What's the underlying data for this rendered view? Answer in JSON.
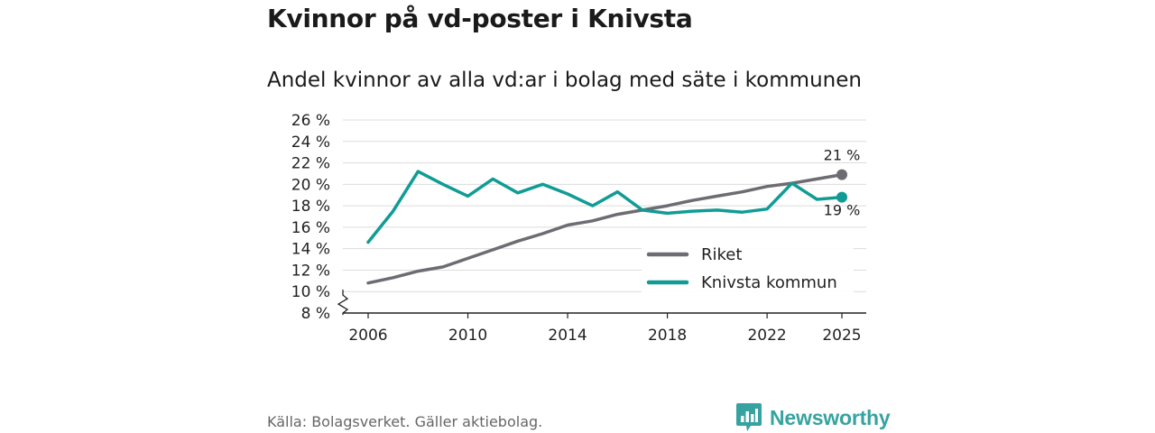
{
  "header": {
    "title": "Kvinnor på vd-poster i Knivsta",
    "subtitle": "Andel kvinnor av alla vd:ar i bolag med säte i kommunen"
  },
  "footer": {
    "source": "Källa: Bolagsverket. Gäller aktiebolag.",
    "brand": "Newsworthy",
    "brand_color": "#36a3a0",
    "brand_icon": "bar-chart-icon"
  },
  "chart_data": {
    "type": "line",
    "title": "Kvinnor på vd-poster i Knivsta",
    "subtitle": "Andel kvinnor av alla vd:ar i bolag med säte i kommunen",
    "xlabel": "",
    "ylabel": "",
    "x": [
      2006,
      2007,
      2008,
      2009,
      2010,
      2011,
      2012,
      2013,
      2014,
      2015,
      2016,
      2017,
      2018,
      2019,
      2020,
      2021,
      2022,
      2023,
      2024,
      2025
    ],
    "xticks": [
      2006,
      2010,
      2014,
      2018,
      2022,
      2025
    ],
    "xlim": [
      2006,
      2025
    ],
    "ylim": [
      8,
      26
    ],
    "yticks": [
      8,
      10,
      12,
      14,
      16,
      18,
      20,
      22,
      24,
      26
    ],
    "ytick_suffix": " %",
    "axis_break": true,
    "grid": true,
    "legend_position": "lower-right",
    "series": [
      {
        "name": "Riket",
        "color": "#6e6c72",
        "values": [
          10.8,
          11.3,
          11.9,
          12.3,
          13.1,
          13.9,
          14.7,
          15.4,
          16.2,
          16.6,
          17.2,
          17.6,
          18.0,
          18.5,
          18.9,
          19.3,
          19.8,
          20.1,
          20.5,
          20.9
        ],
        "end_label": "21 %"
      },
      {
        "name": "Knivsta kommun",
        "color": "#109c95",
        "values": [
          14.6,
          17.5,
          21.2,
          20.0,
          18.9,
          20.5,
          19.2,
          20.0,
          19.1,
          18.0,
          19.3,
          17.6,
          17.3,
          17.5,
          17.6,
          17.4,
          17.7,
          20.1,
          18.6,
          18.8
        ],
        "end_label": "19 %"
      }
    ]
  }
}
